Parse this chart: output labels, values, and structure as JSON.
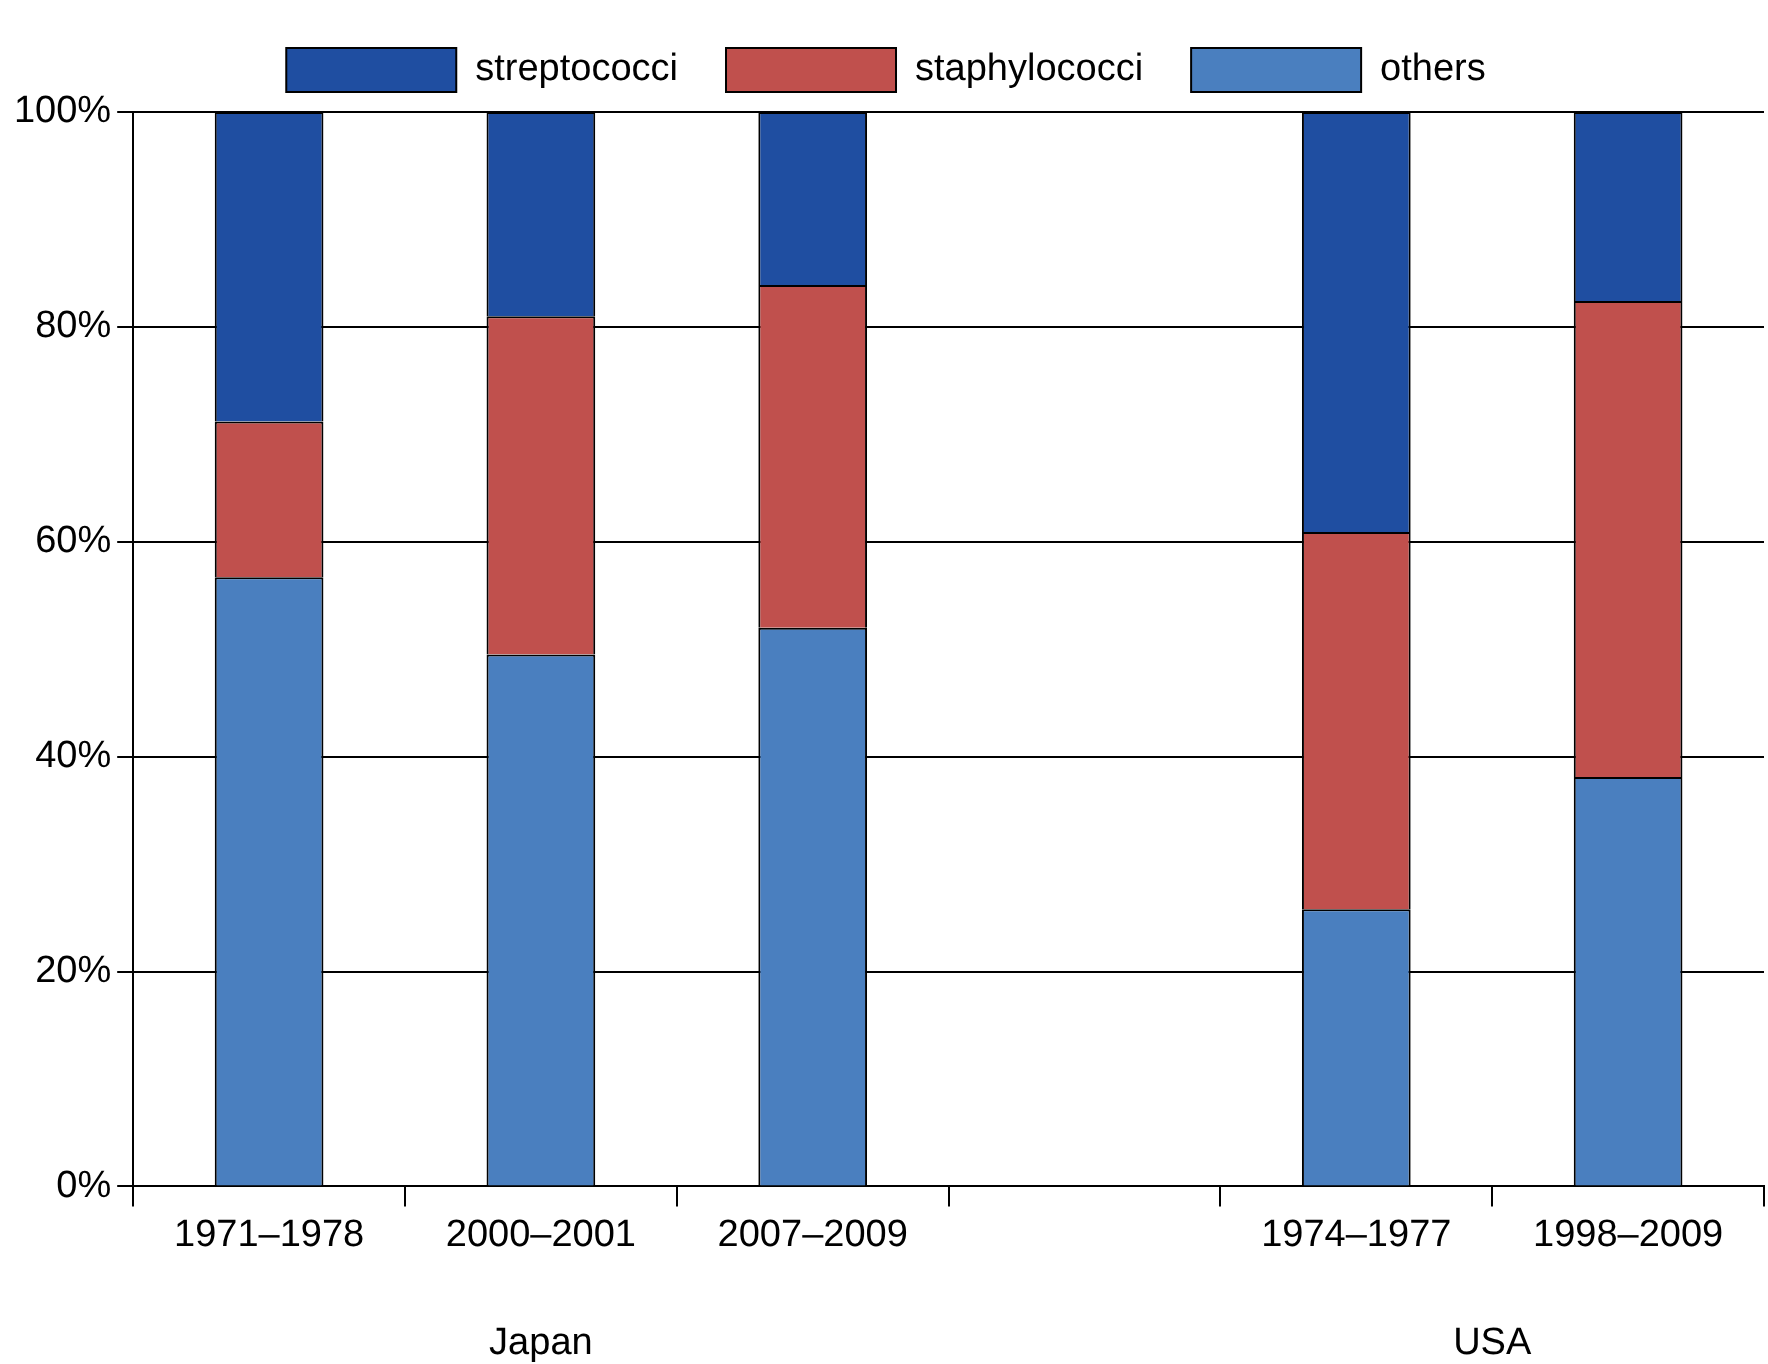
{
  "chart_data": {
    "type": "bar",
    "stacked": true,
    "categories": [
      "1971–1978",
      "2000–2001",
      "2007–2009",
      null,
      "1974–1977",
      "1998–2009"
    ],
    "series": [
      {
        "name": "others",
        "color": "#4a7fbf",
        "values": [
          56.7,
          49.5,
          52.0,
          null,
          25.8,
          38.1
        ]
      },
      {
        "name": "staphylococci",
        "color": "#c0504d",
        "values": [
          14.5,
          31.5,
          31.9,
          null,
          35.1,
          44.3
        ]
      },
      {
        "name": "streptococci",
        "color": "#1f4ea1",
        "values": [
          28.8,
          19.0,
          16.1,
          null,
          39.1,
          17.6
        ]
      }
    ],
    "ylim": [
      0,
      100
    ],
    "yticks": [
      {
        "value": 0,
        "label": "0%"
      },
      {
        "value": 20,
        "label": "20%"
      },
      {
        "value": 40,
        "label": "40%"
      },
      {
        "value": 60,
        "label": "60%"
      },
      {
        "value": 80,
        "label": "80%"
      },
      {
        "value": 100,
        "label": "100%"
      }
    ],
    "grid": "y",
    "legend": "top",
    "annotations": [
      "Japan",
      "USA"
    ]
  }
}
